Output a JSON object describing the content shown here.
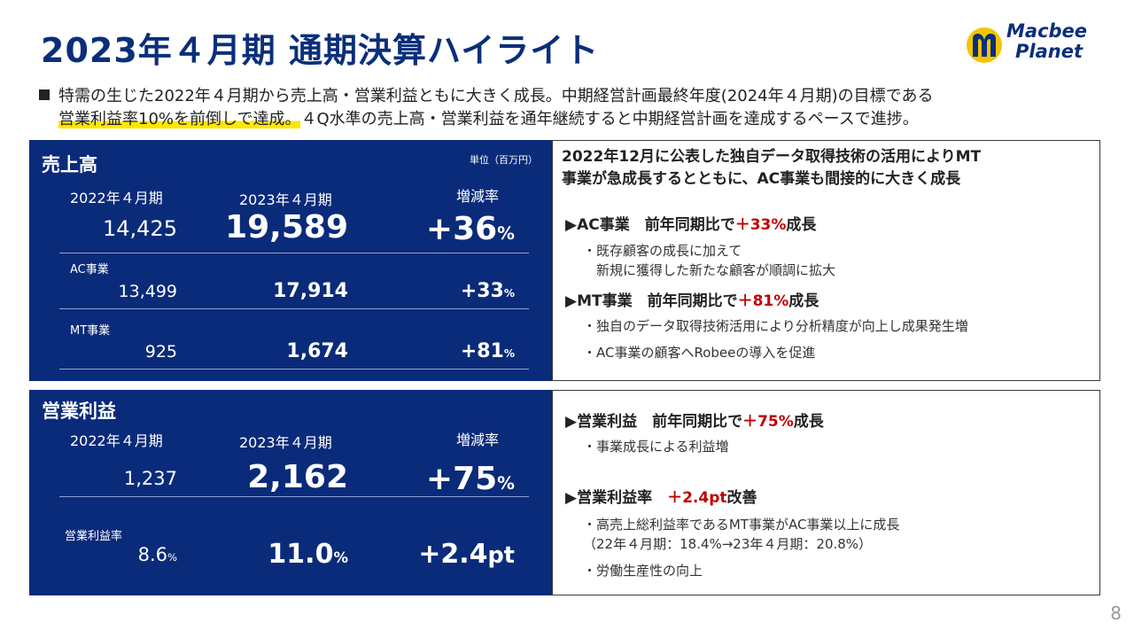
{
  "title": "2023年４月期 通期決算ハイライト",
  "logo": {
    "line1": "Macbee",
    "line2": "Planet"
  },
  "intro": {
    "line1": "特需の生じた2022年４月期から売上高・営業利益ともに大きく成長。中期経営計画最終年度(2024年４月期)の目標である",
    "line2_highlight": "営業利益率10%を前倒しで達成。",
    "line2_rest": "４Q水準の売上高・営業利益を通年継続すると中期経営計画を達成するペースで進捗。"
  },
  "sales": {
    "title": "売上高",
    "unit": "単位（百万円）",
    "col_prev": "2022年４月期",
    "col_cur": "2023年４月期",
    "col_rate": "増減率",
    "total": {
      "prev": "14,425",
      "cur": "19,589",
      "rate": "+36",
      "rate_unit": "%"
    },
    "ac": {
      "label": "AC事業",
      "prev": "13,499",
      "cur": "17,914",
      "rate": "+33",
      "rate_unit": "%"
    },
    "mt": {
      "label": "MT事業",
      "prev": "925",
      "cur": "1,674",
      "rate": "+81",
      "rate_unit": "%"
    }
  },
  "profit": {
    "title": "営業利益",
    "col_prev": "2022年４月期",
    "col_cur": "2023年４月期",
    "col_rate": "増減率",
    "total": {
      "prev": "1,237",
      "cur": "2,162",
      "rate": "+75",
      "rate_unit": "%"
    },
    "margin": {
      "label": "営業利益率",
      "prev": "8.6",
      "prev_unit": "%",
      "cur": "11.0",
      "cur_unit": "%",
      "rate": "+2.4",
      "rate_unit": "pt"
    }
  },
  "sales_box": {
    "head1": "2022年12月に公表した独自データ取得技術の活用によりMT",
    "head2": "事業が急成長するとともに、AC事業も間接的に大きく成長",
    "ac_bullet": "▶AC事業　前年同期比で",
    "ac_growth": "＋33%",
    "ac_suffix": "成長",
    "ac_item1a": "・既存顧客の成長に加えて",
    "ac_item1b": "　新規に獲得した新たな顧客が順調に拡大",
    "mt_bullet": "▶MT事業　前年同期比で",
    "mt_growth": "＋81%",
    "mt_suffix": "成長",
    "mt_item1": "・独自のデータ取得技術活用により分析精度が向上し成果発生増",
    "mt_item2": "・AC事業の顧客へRobeeの導入を促進"
  },
  "profit_box": {
    "op_bullet": "▶営業利益　前年同期比で",
    "op_growth": "＋75%",
    "op_suffix": "成長",
    "op_item1": "・事業成長による利益増",
    "margin_bullet": "▶営業利益率　",
    "margin_growth": "＋2.4pt",
    "margin_suffix": "改善",
    "margin_item1a": "・高売上総利益率であるMT事業がAC事業以上に成長",
    "margin_item1b": "（22年４月期：18.4%→23年４月期：20.8%）",
    "margin_item2": "・労働生産性の向上"
  },
  "page_number": "8",
  "colors": {
    "navy": "#0a2b7a",
    "title": "#0a2f7a",
    "accent_red": "#c00000",
    "highlight": "#ffe600",
    "logo_yellow": "#f5c400"
  }
}
